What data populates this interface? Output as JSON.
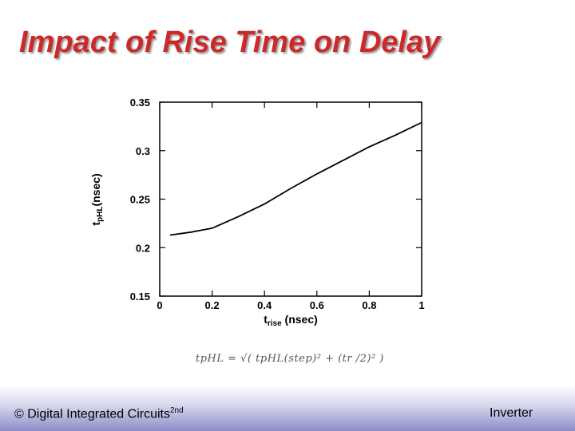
{
  "slide": {
    "title": "Impact of Rise Time on Delay",
    "footer_left": "© Digital Integrated Circuits",
    "footer_left_sup": "2nd",
    "footer_right": "Inverter"
  },
  "formula": {
    "text": "tpHL = √( tpHL(step)² + (tr /2)² )"
  },
  "chart_data": {
    "type": "line",
    "xlabel_main": "t",
    "xlabel_sub": "rise",
    "xlabel_unit": " (nsec)",
    "ylabel_main": "t",
    "ylabel_sub": "pHL",
    "ylabel_unit": "(nsec)",
    "xlim": [
      0,
      1
    ],
    "ylim": [
      0.15,
      0.35
    ],
    "x_ticks": [
      "0",
      "0.2",
      "0.4",
      "0.6",
      "0.8",
      "1"
    ],
    "y_ticks": [
      "0.15",
      "0.2",
      "0.25",
      "0.3",
      "0.35"
    ],
    "series": [
      {
        "x": [
          0.04,
          0.12,
          0.2,
          0.3,
          0.4,
          0.5,
          0.6,
          0.7,
          0.8,
          0.9,
          1.0
        ],
        "y": [
          0.213,
          0.216,
          0.22,
          0.232,
          0.245,
          0.261,
          0.276,
          0.29,
          0.304,
          0.316,
          0.329
        ]
      }
    ],
    "colors": {
      "line": "#000000",
      "axis": "#000000"
    }
  }
}
